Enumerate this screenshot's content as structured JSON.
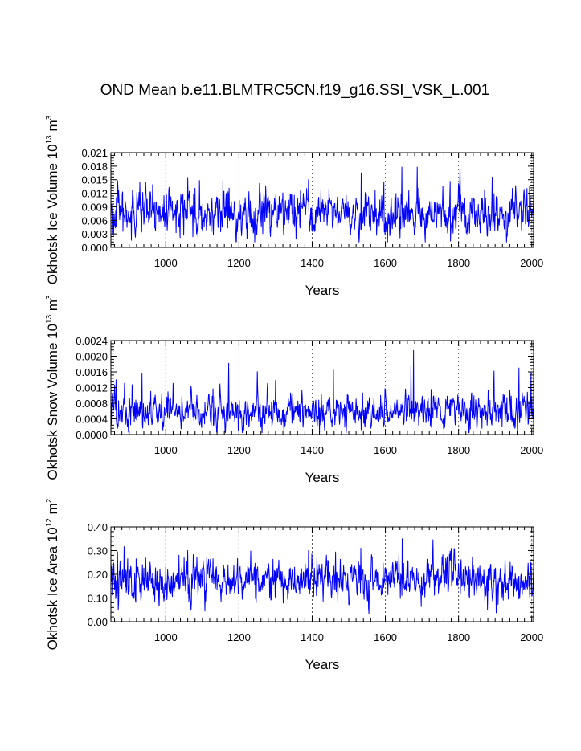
{
  "title": "OND Mean b.e11.BLMTRC5CN.f19_g16.SSI_VSK_L.001",
  "colors": {
    "series": "#0000ff",
    "frame": "#000000",
    "refline": "#555555"
  },
  "chart_data": [
    {
      "type": "line",
      "x_range": [
        850,
        2005
      ],
      "xlabel": "Years",
      "ylabel": {
        "text": "Okhotsk Ice Volume 10",
        "exp": "13",
        "unit_text": " m",
        "unit_exp": "3"
      },
      "ylim": [
        0.0,
        0.021
      ],
      "yticks": [
        0.0,
        0.003,
        0.006,
        0.009,
        0.012,
        0.015,
        0.018,
        0.021
      ],
      "ytick_labels": [
        "0.000",
        "0.003",
        "0.006",
        "0.009",
        "0.012",
        "0.015",
        "0.018",
        "0.021"
      ],
      "xticks": [
        1000,
        1200,
        1400,
        1600,
        1800,
        2000
      ],
      "xtick_labels": [
        "1000",
        "1200",
        "1400",
        "1600",
        "1800",
        "2000"
      ],
      "reference_lines_x": [
        1000,
        1200,
        1400,
        1600,
        1800,
        2000
      ],
      "series": [
        {
          "x_start": 850,
          "x_end": 2005,
          "mean": 0.0074,
          "spread": 0.0025,
          "min": 0.0012,
          "max": 0.0178,
          "peaks": [
            [
              1534,
              0.0165
            ],
            [
              1645,
              0.0178
            ],
            [
              1390,
              0.015
            ],
            [
              1060,
              0.0155
            ],
            [
              868,
              0.0148
            ]
          ]
        }
      ]
    },
    {
      "type": "line",
      "x_range": [
        850,
        2005
      ],
      "xlabel": "Years",
      "ylabel": {
        "text": "Okhotsk Snow Volume 10",
        "exp": "13",
        "unit_text": " m",
        "unit_exp": "3"
      },
      "ylim": [
        0.0,
        0.0024
      ],
      "yticks": [
        0.0,
        0.0004,
        0.0008,
        0.0012,
        0.0016,
        0.002,
        0.0024
      ],
      "ytick_labels": [
        "0.0000",
        "0.0004",
        "0.0008",
        "0.0012",
        "0.0016",
        "0.0020",
        "0.0024"
      ],
      "xticks": [
        1000,
        1200,
        1400,
        1600,
        1800,
        2000
      ],
      "xtick_labels": [
        "1000",
        "1200",
        "1400",
        "1600",
        "1800",
        "2000"
      ],
      "reference_lines_x": [
        1000,
        1200,
        1400,
        1600,
        1800,
        2000
      ],
      "series": [
        {
          "x_start": 850,
          "x_end": 2005,
          "mean": 0.00058,
          "spread": 0.00022,
          "min": 5e-05,
          "max": 0.00215,
          "peaks": [
            [
              1677,
              0.00215
            ],
            [
              1172,
              0.00182
            ],
            [
              1670,
              0.00178
            ],
            [
              1965,
              0.0017
            ],
            [
              1458,
              0.00165
            ],
            [
              1897,
              0.00162
            ],
            [
              1998,
              0.00158
            ],
            [
              935,
              0.00155
            ],
            [
              864,
              0.0014
            ]
          ]
        }
      ]
    },
    {
      "type": "line",
      "x_range": [
        850,
        2005
      ],
      "xlabel": "Years",
      "ylabel": {
        "text": "Okhotsk Ice Area 10",
        "exp": "12",
        "unit_text": " m",
        "unit_exp": "2"
      },
      "ylim": [
        0.0,
        0.4
      ],
      "yticks": [
        0.0,
        0.1,
        0.2,
        0.3,
        0.4
      ],
      "ytick_labels": [
        "0.00",
        "0.10",
        "0.20",
        "0.30",
        "0.40"
      ],
      "xticks": [
        1000,
        1200,
        1400,
        1600,
        1800,
        2000
      ],
      "xtick_labels": [
        "1000",
        "1200",
        "1400",
        "1600",
        "1800",
        "2000"
      ],
      "reference_lines_x": [
        1000,
        1200,
        1400,
        1600,
        1800,
        2000
      ],
      "series": [
        {
          "x_start": 850,
          "x_end": 2005,
          "mean": 0.175,
          "spread": 0.045,
          "min": 0.035,
          "max": 0.35,
          "peaks": [
            [
              1646,
              0.35
            ],
            [
              1533,
              0.31
            ],
            [
              1390,
              0.3
            ],
            [
              868,
              0.295
            ],
            [
              1060,
              0.3
            ]
          ]
        }
      ]
    }
  ]
}
